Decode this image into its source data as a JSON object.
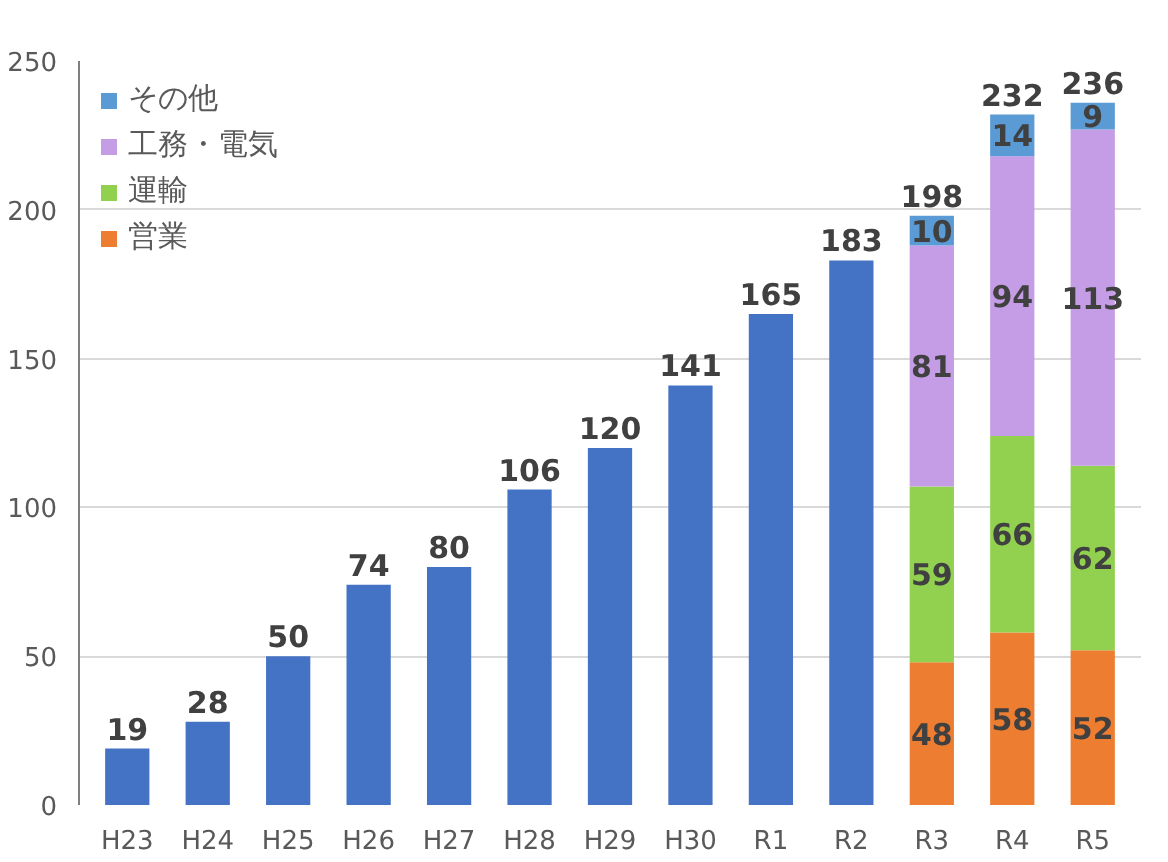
{
  "chart_data": {
    "type": "bar",
    "stacked": true,
    "categories": [
      "H23",
      "H24",
      "H25",
      "H26",
      "H27",
      "H28",
      "H29",
      "H30",
      "R1",
      "R2",
      "R3",
      "R4",
      "R5"
    ],
    "series": [
      {
        "color": "#4472c4",
        "values": [
          19,
          28,
          50,
          74,
          80,
          106,
          120,
          141,
          165,
          183,
          null,
          null,
          null
        ]
      },
      {
        "name": "営業",
        "color": "#ed7d31",
        "values": [
          null,
          null,
          null,
          null,
          null,
          null,
          null,
          null,
          null,
          null,
          48,
          58,
          52
        ]
      },
      {
        "name": "運輸",
        "color": "#92d050",
        "values": [
          null,
          null,
          null,
          null,
          null,
          null,
          null,
          null,
          null,
          null,
          59,
          66,
          62
        ]
      },
      {
        "name": "工務・電気",
        "color": "#c59de6",
        "values": [
          null,
          null,
          null,
          null,
          null,
          null,
          null,
          null,
          null,
          null,
          81,
          94,
          113
        ]
      },
      {
        "name": "その他",
        "color": "#5b9bd5",
        "values": [
          null,
          null,
          null,
          null,
          null,
          null,
          null,
          null,
          null,
          null,
          10,
          14,
          9
        ]
      }
    ],
    "totals": [
      null,
      null,
      null,
      null,
      null,
      null,
      null,
      null,
      null,
      null,
      "198",
      "232",
      "236"
    ],
    "data_labels": true,
    "ylim": [
      0,
      250
    ],
    "yticks": [
      0,
      50,
      100,
      150,
      200,
      250
    ],
    "grid": "y",
    "legend": "top left"
  }
}
